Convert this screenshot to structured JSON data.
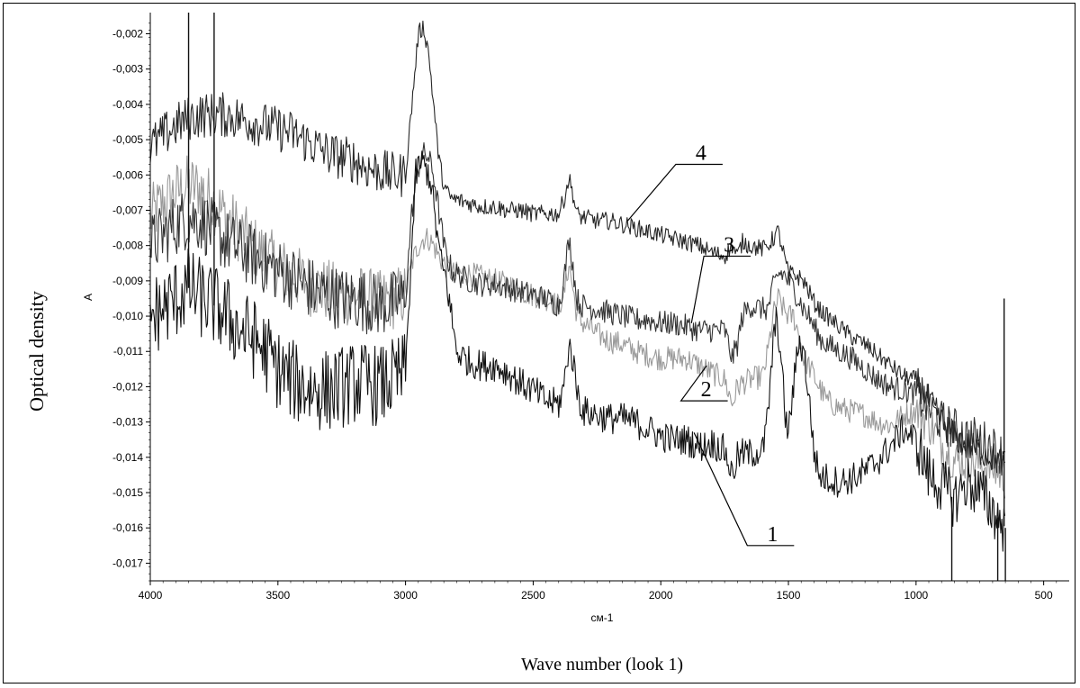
{
  "chart_data": {
    "type": "line",
    "title": "",
    "xlabel": "Wave number (look 1)",
    "xunit": "см-1",
    "ylabel": "Optical density",
    "yunit": "A",
    "xlim": [
      4000,
      400
    ],
    "ylim": [
      -0.0175,
      -0.0014
    ],
    "x_reversed": true,
    "grid": false,
    "x_ticks": [
      4000,
      3500,
      3000,
      2500,
      2000,
      1500,
      1000,
      500
    ],
    "x_tick_labels": [
      "4000",
      "3500",
      "3000",
      "2500",
      "2000",
      "1500",
      "1000",
      "500"
    ],
    "y_ticks": [
      -0.002,
      -0.003,
      -0.004,
      -0.005,
      -0.006,
      -0.007,
      -0.008,
      -0.009,
      -0.01,
      -0.011,
      -0.012,
      -0.013,
      -0.014,
      -0.015,
      -0.016,
      -0.017
    ],
    "y_tick_labels": [
      "-0,002",
      "-0,003",
      "-0,004",
      "-0,005",
      "-0,006",
      "-0,007",
      "-0,008",
      "-0,009",
      "-0,010",
      "-0,011",
      "-0,012",
      "-0,013",
      "-0,014",
      "-0,015",
      "-0,016",
      "-0,017"
    ],
    "series": [
      {
        "label": "1",
        "color": "#111111",
        "noise": 0.00045,
        "label_pos": [
          1640,
          -0.0165
        ],
        "leader_to": [
          1870,
          -0.0133
        ],
        "x": [
          4000,
          3950,
          3900,
          3850,
          3800,
          3750,
          3700,
          3650,
          3600,
          3550,
          3500,
          3450,
          3400,
          3350,
          3300,
          3250,
          3200,
          3150,
          3100,
          3050,
          3000,
          2975,
          2960,
          2940,
          2920,
          2900,
          2880,
          2860,
          2840,
          2820,
          2800,
          2750,
          2700,
          2650,
          2600,
          2550,
          2500,
          2450,
          2400,
          2380,
          2360,
          2345,
          2330,
          2310,
          2300,
          2250,
          2200,
          2150,
          2100,
          2050,
          2000,
          1950,
          1900,
          1850,
          1800,
          1750,
          1720,
          1700,
          1680,
          1650,
          1600,
          1580,
          1560,
          1545,
          1530,
          1510,
          1500,
          1480,
          1460,
          1440,
          1420,
          1400,
          1380,
          1350,
          1300,
          1250,
          1200,
          1150,
          1100,
          1050,
          1000,
          950,
          900,
          850,
          800,
          750,
          700,
          650
        ],
        "y": [
          -0.01,
          -0.0098,
          -0.0095,
          -0.0092,
          -0.0095,
          -0.0097,
          -0.01,
          -0.0104,
          -0.0106,
          -0.011,
          -0.0115,
          -0.0118,
          -0.012,
          -0.0121,
          -0.0121,
          -0.012,
          -0.0119,
          -0.0119,
          -0.012,
          -0.0118,
          -0.0116,
          -0.008,
          -0.006,
          -0.0056,
          -0.0058,
          -0.0062,
          -0.0075,
          -0.0085,
          -0.009,
          -0.01,
          -0.011,
          -0.0113,
          -0.0114,
          -0.0114,
          -0.0116,
          -0.0119,
          -0.0121,
          -0.0124,
          -0.0125,
          -0.012,
          -0.0108,
          -0.0112,
          -0.012,
          -0.0126,
          -0.0127,
          -0.0128,
          -0.0129,
          -0.0129,
          -0.013,
          -0.0132,
          -0.0134,
          -0.0135,
          -0.0135,
          -0.0137,
          -0.0136,
          -0.0138,
          -0.0145,
          -0.014,
          -0.0139,
          -0.0139,
          -0.0138,
          -0.0128,
          -0.0108,
          -0.01,
          -0.0112,
          -0.013,
          -0.0133,
          -0.012,
          -0.0107,
          -0.011,
          -0.0123,
          -0.0138,
          -0.0145,
          -0.0146,
          -0.0147,
          -0.0146,
          -0.0144,
          -0.0141,
          -0.0137,
          -0.0132,
          -0.0135,
          -0.0145,
          -0.0148,
          -0.0152,
          -0.0147,
          -0.015,
          -0.0155,
          -0.016
        ]
      },
      {
        "label": "2",
        "color": "#9a9a9a",
        "noise": 0.00035,
        "label_pos": [
          1900,
          -0.0124
        ],
        "leader_to": [
          1820,
          -0.0114
        ],
        "x": [
          4000,
          3950,
          3900,
          3850,
          3800,
          3750,
          3700,
          3650,
          3600,
          3550,
          3500,
          3450,
          3400,
          3350,
          3300,
          3250,
          3200,
          3150,
          3100,
          3050,
          3000,
          2975,
          2950,
          2930,
          2910,
          2890,
          2870,
          2850,
          2830,
          2810,
          2800,
          2750,
          2700,
          2650,
          2600,
          2550,
          2500,
          2450,
          2400,
          2380,
          2360,
          2345,
          2330,
          2310,
          2300,
          2250,
          2200,
          2150,
          2100,
          2050,
          2000,
          1950,
          1900,
          1850,
          1800,
          1750,
          1720,
          1700,
          1680,
          1650,
          1600,
          1580,
          1560,
          1540,
          1520,
          1500,
          1480,
          1460,
          1440,
          1420,
          1400,
          1380,
          1350,
          1300,
          1250,
          1200,
          1150,
          1100,
          1050,
          1000,
          950,
          900,
          850,
          800,
          750,
          700,
          650
        ],
        "y": [
          -0.0072,
          -0.0068,
          -0.0065,
          -0.0063,
          -0.0064,
          -0.0068,
          -0.0072,
          -0.0076,
          -0.008,
          -0.0083,
          -0.0086,
          -0.0088,
          -0.009,
          -0.0092,
          -0.0093,
          -0.0094,
          -0.0094,
          -0.0095,
          -0.0096,
          -0.0095,
          -0.0094,
          -0.0085,
          -0.008,
          -0.0078,
          -0.0078,
          -0.008,
          -0.0083,
          -0.0085,
          -0.0087,
          -0.0088,
          -0.0088,
          -0.0088,
          -0.0089,
          -0.009,
          -0.0091,
          -0.0093,
          -0.0094,
          -0.0095,
          -0.0097,
          -0.0094,
          -0.0085,
          -0.0092,
          -0.0099,
          -0.0102,
          -0.0102,
          -0.0105,
          -0.0107,
          -0.0108,
          -0.011,
          -0.0111,
          -0.0112,
          -0.0112,
          -0.0112,
          -0.0114,
          -0.0116,
          -0.0118,
          -0.0125,
          -0.012,
          -0.0119,
          -0.0118,
          -0.0117,
          -0.011,
          -0.01,
          -0.0095,
          -0.0098,
          -0.01,
          -0.01,
          -0.0105,
          -0.0112,
          -0.0114,
          -0.0117,
          -0.012,
          -0.0124,
          -0.0126,
          -0.0127,
          -0.0128,
          -0.013,
          -0.0131,
          -0.0128,
          -0.0127,
          -0.013,
          -0.0136,
          -0.0141,
          -0.0141,
          -0.0142,
          -0.0143,
          -0.0146
        ]
      },
      {
        "label": "3",
        "color": "#333333",
        "noise": 0.00035,
        "label_pos": [
          1810,
          -0.0083
        ],
        "leader_to": [
          1880,
          -0.0102
        ],
        "x": [
          4000,
          3950,
          3900,
          3850,
          3800,
          3750,
          3700,
          3650,
          3600,
          3550,
          3500,
          3450,
          3400,
          3350,
          3300,
          3250,
          3200,
          3150,
          3100,
          3050,
          3000,
          2975,
          2950,
          2930,
          2910,
          2890,
          2870,
          2850,
          2830,
          2810,
          2800,
          2750,
          2700,
          2650,
          2600,
          2550,
          2500,
          2450,
          2400,
          2380,
          2360,
          2345,
          2330,
          2310,
          2300,
          2250,
          2200,
          2150,
          2100,
          2050,
          2000,
          1950,
          1900,
          1850,
          1800,
          1750,
          1720,
          1700,
          1680,
          1650,
          1600,
          1580,
          1560,
          1540,
          1520,
          1500,
          1480,
          1460,
          1440,
          1420,
          1400,
          1380,
          1350,
          1300,
          1250,
          1200,
          1150,
          1100,
          1050,
          1000,
          950,
          900,
          850,
          800,
          750,
          700,
          650
        ],
        "y": [
          -0.008,
          -0.0077,
          -0.0074,
          -0.0072,
          -0.0073,
          -0.0076,
          -0.0079,
          -0.0081,
          -0.0083,
          -0.0085,
          -0.0087,
          -0.0089,
          -0.0091,
          -0.0093,
          -0.0094,
          -0.0095,
          -0.0095,
          -0.0096,
          -0.0097,
          -0.0096,
          -0.0095,
          -0.007,
          -0.0058,
          -0.0054,
          -0.0055,
          -0.006,
          -0.007,
          -0.008,
          -0.0085,
          -0.0088,
          -0.0088,
          -0.009,
          -0.0091,
          -0.0091,
          -0.0092,
          -0.0093,
          -0.0094,
          -0.0095,
          -0.0097,
          -0.009,
          -0.0078,
          -0.0085,
          -0.0095,
          -0.0097,
          -0.0097,
          -0.0098,
          -0.0099,
          -0.01,
          -0.0101,
          -0.0101,
          -0.0102,
          -0.0102,
          -0.0103,
          -0.0104,
          -0.0104,
          -0.0104,
          -0.0112,
          -0.0108,
          -0.01,
          -0.0097,
          -0.0098,
          -0.0098,
          -0.0092,
          -0.0088,
          -0.0088,
          -0.009,
          -0.0092,
          -0.0095,
          -0.0098,
          -0.01,
          -0.0103,
          -0.0106,
          -0.0108,
          -0.011,
          -0.0112,
          -0.0115,
          -0.0118,
          -0.012,
          -0.0121,
          -0.0122,
          -0.0126,
          -0.013,
          -0.0132,
          -0.0134,
          -0.0135,
          -0.0137,
          -0.014
        ]
      },
      {
        "label": "4",
        "color": "#262626",
        "noise": 0.00025,
        "label_pos": [
          1920,
          -0.0057
        ],
        "leader_to": [
          2130,
          -0.0073
        ],
        "x": [
          4000,
          3950,
          3900,
          3850,
          3800,
          3750,
          3700,
          3650,
          3600,
          3550,
          3500,
          3450,
          3400,
          3350,
          3300,
          3250,
          3200,
          3150,
          3100,
          3050,
          3000,
          2975,
          2950,
          2930,
          2910,
          2890,
          2870,
          2850,
          2830,
          2810,
          2800,
          2750,
          2700,
          2650,
          2600,
          2550,
          2500,
          2450,
          2400,
          2380,
          2360,
          2345,
          2330,
          2310,
          2300,
          2250,
          2200,
          2150,
          2100,
          2050,
          2000,
          1950,
          1900,
          1850,
          1800,
          1750,
          1720,
          1700,
          1680,
          1650,
          1600,
          1580,
          1560,
          1540,
          1520,
          1500,
          1480,
          1460,
          1440,
          1420,
          1400,
          1380,
          1350,
          1300,
          1250,
          1200,
          1150,
          1100,
          1050,
          1000,
          950,
          900,
          850,
          800,
          750,
          700,
          650
        ],
        "y": [
          -0.0052,
          -0.0049,
          -0.0046,
          -0.0044,
          -0.0043,
          -0.0043,
          -0.0043,
          -0.0044,
          -0.0045,
          -0.0046,
          -0.0047,
          -0.0048,
          -0.005,
          -0.0052,
          -0.0054,
          -0.0055,
          -0.0056,
          -0.0058,
          -0.0059,
          -0.006,
          -0.006,
          -0.004,
          -0.002,
          -0.0018,
          -0.0025,
          -0.004,
          -0.0055,
          -0.0063,
          -0.0066,
          -0.0067,
          -0.0067,
          -0.0068,
          -0.0069,
          -0.0069,
          -0.007,
          -0.007,
          -0.0071,
          -0.0071,
          -0.0071,
          -0.0067,
          -0.0061,
          -0.0065,
          -0.0071,
          -0.0072,
          -0.0072,
          -0.0073,
          -0.0073,
          -0.0074,
          -0.0075,
          -0.0076,
          -0.0077,
          -0.0078,
          -0.0079,
          -0.008,
          -0.0082,
          -0.0083,
          -0.008,
          -0.0083,
          -0.0079,
          -0.008,
          -0.0081,
          -0.008,
          -0.0078,
          -0.0076,
          -0.0082,
          -0.0088,
          -0.0088,
          -0.0089,
          -0.009,
          -0.0093,
          -0.0096,
          -0.0098,
          -0.01,
          -0.0103,
          -0.0106,
          -0.0108,
          -0.0111,
          -0.0114,
          -0.0117,
          -0.0118,
          -0.0124,
          -0.013,
          -0.0134,
          -0.0137,
          -0.0138,
          -0.014,
          -0.0142
        ]
      }
    ],
    "spikes": [
      {
        "series": "1",
        "x": 3850,
        "y_to": -0.0012
      },
      {
        "series": "1",
        "x": 3750,
        "y_to": -0.0012
      },
      {
        "series": "1",
        "x": 860,
        "y_to": -0.018
      },
      {
        "series": "1",
        "x": 680,
        "y_to": -0.018
      },
      {
        "series": "1",
        "x": 655,
        "y_to": -0.0095
      },
      {
        "series": "1",
        "x": 650,
        "y_to": -0.018
      }
    ]
  }
}
